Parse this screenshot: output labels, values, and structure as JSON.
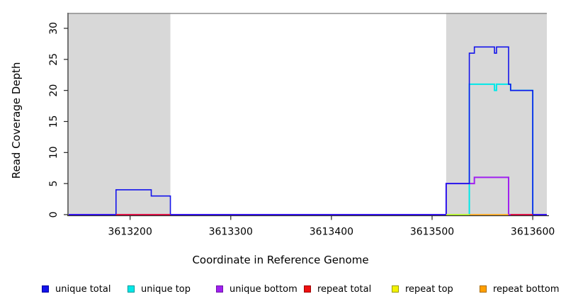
{
  "chart_data": {
    "type": "line",
    "subtype": "step-coverage",
    "title": "",
    "xlabel": "Coordinate in Reference Genome",
    "ylabel": "Read Coverage Depth",
    "xlim": [
      3613139,
      3613614
    ],
    "ylim": [
      0,
      32.5
    ],
    "xticks": [
      3613200,
      3613300,
      3613400,
      3613500,
      3613600
    ],
    "yticks": [
      0,
      5,
      10,
      15,
      20,
      25,
      30
    ],
    "grid": false,
    "legend_position": "bottom",
    "shaded_regions": {
      "color": "#D8D8D8",
      "intervals": [
        [
          3613139,
          3613240
        ],
        [
          3613514,
          3613614
        ]
      ]
    },
    "series": [
      {
        "name": "unique total",
        "color": "#1414EB",
        "swatch_border": "#0000A0",
        "width": 1.6,
        "steps": [
          [
            3613139,
            0
          ],
          [
            3613186,
            4
          ],
          [
            3613221,
            3
          ],
          [
            3613240,
            0
          ],
          [
            3613514,
            5
          ],
          [
            3613537,
            26
          ],
          [
            3613542,
            27
          ],
          [
            3613562,
            26
          ],
          [
            3613564,
            27
          ],
          [
            3613576,
            21
          ],
          [
            3613578,
            20
          ],
          [
            3613600,
            0
          ],
          [
            3613614,
            0
          ]
        ]
      },
      {
        "name": "unique top",
        "color": "#00E8E8",
        "swatch_border": "#009898",
        "width": 2,
        "steps": [
          [
            3613139,
            0
          ],
          [
            3613537,
            21
          ],
          [
            3613562,
            20
          ],
          [
            3613564,
            21
          ],
          [
            3613578,
            20
          ],
          [
            3613600,
            0
          ],
          [
            3613614,
            0
          ]
        ]
      },
      {
        "name": "unique bottom",
        "color": "#A020F0",
        "swatch_border": "#6E16A6",
        "width": 2,
        "steps": [
          [
            3613139,
            0
          ],
          [
            3613514,
            5
          ],
          [
            3613542,
            6
          ],
          [
            3613576,
            0
          ],
          [
            3613614,
            0
          ]
        ]
      },
      {
        "name": "repeat total",
        "color": "#EE1111",
        "swatch_border": "#9E0000",
        "width": 1.6,
        "value": 0,
        "intervals": [
          [
            3613186,
            3613240
          ],
          [
            3613578,
            3613600
          ]
        ]
      },
      {
        "name": "repeat top",
        "color": "#F2F200",
        "swatch_border": "#999900",
        "width": 1.6,
        "value": 0,
        "intervals": [
          [
            3613514,
            3613537
          ]
        ]
      },
      {
        "name": "repeat bottom",
        "color": "#FF9F00",
        "swatch_border": "#AA6A00",
        "width": 1.6,
        "value": 0,
        "intervals": [
          [
            3613537,
            3613576
          ]
        ]
      }
    ]
  }
}
